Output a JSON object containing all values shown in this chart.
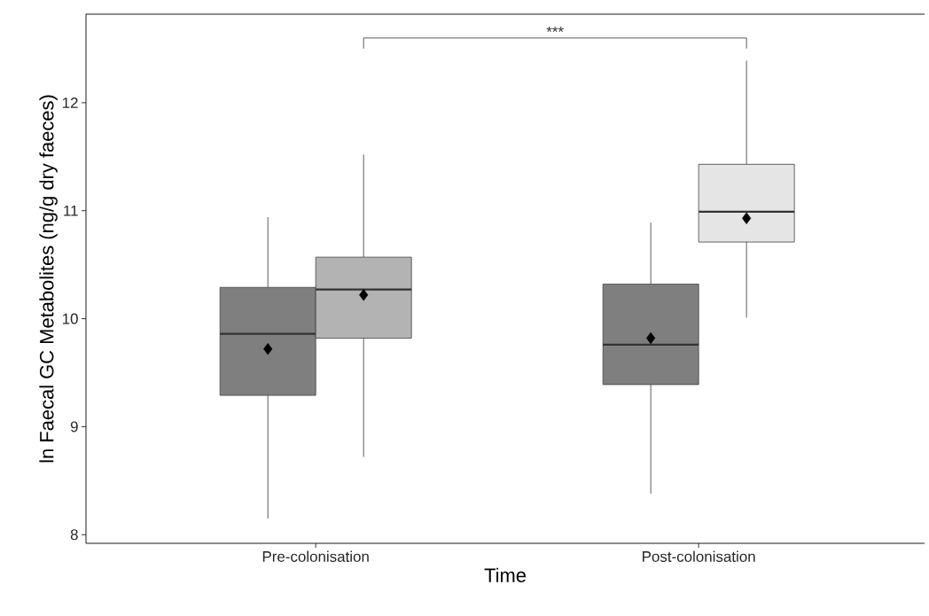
{
  "chart_data": {
    "type": "box",
    "xlabel": "Time",
    "ylabel": "ln Faecal GC Metabolites (ng/g dry faeces)",
    "categories": [
      "Pre-colonisation",
      "Post-colonisation"
    ],
    "series": [
      {
        "color": "#7f7f7f",
        "boxes": [
          {
            "low": 8.15,
            "q1": 9.29,
            "median": 9.86,
            "q3": 10.29,
            "high": 10.94,
            "mean": 9.72
          },
          {
            "low": 8.38,
            "q1": 9.39,
            "median": 9.76,
            "q3": 10.32,
            "high": 10.89,
            "mean": 9.82
          }
        ]
      },
      {
        "colors": [
          "#b3b3b3",
          "#e5e5e5"
        ],
        "boxes": [
          {
            "low": 8.72,
            "q1": 9.82,
            "median": 10.27,
            "q3": 10.57,
            "high": 11.52,
            "mean": 10.22
          },
          {
            "low": 10.01,
            "q1": 10.71,
            "median": 10.99,
            "q3": 11.43,
            "high": 12.39,
            "mean": 10.93
          }
        ]
      }
    ],
    "ylim": [
      7.92,
      12.82
    ],
    "yticks": [
      8,
      9,
      10,
      11,
      12
    ],
    "annotations": [
      "***"
    ]
  }
}
